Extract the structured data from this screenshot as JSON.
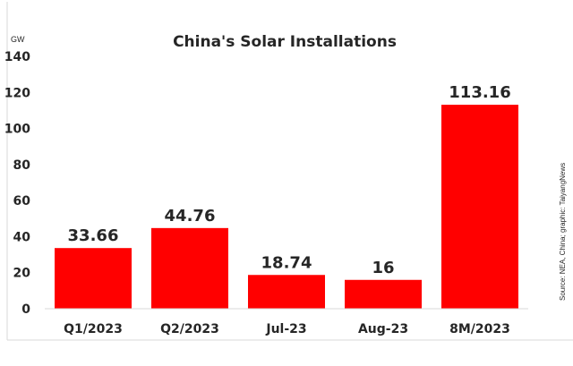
{
  "chart_data": {
    "type": "bar",
    "title": "China's Solar Installations",
    "unit_label": "GW",
    "categories": [
      "Q1/2023",
      "Q2/2023",
      "Jul-23",
      "Aug-23",
      "8M/2023"
    ],
    "values": [
      33.66,
      44.76,
      18.74,
      16,
      113.16
    ],
    "data_labels": [
      "33.66",
      "44.76",
      "18.74",
      "16",
      "113.16"
    ],
    "ylim": [
      0,
      140
    ],
    "yticks": [
      "0",
      "20",
      "40",
      "60",
      "80",
      "100",
      "120",
      "140"
    ],
    "ytick_values": [
      0,
      20,
      40,
      60,
      80,
      100,
      120,
      140
    ],
    "grid": false,
    "bar_color": "#ff0000",
    "source": "Source: NEA, China; graphic: TaiyangNews"
  }
}
